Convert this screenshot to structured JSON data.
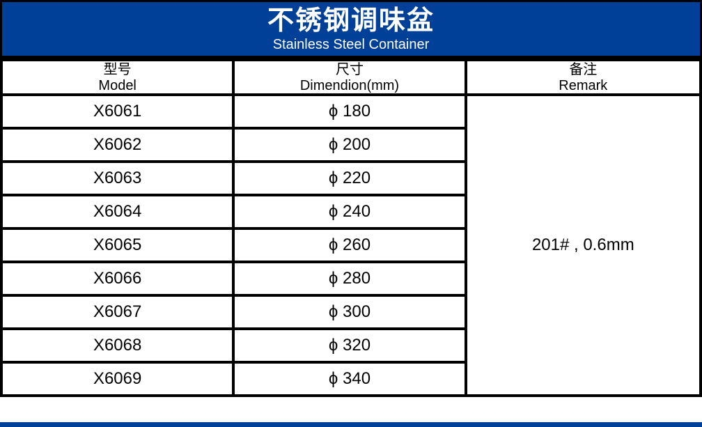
{
  "banner": {
    "title_zh": "不锈钢调味盆",
    "title_en": "Stainless Steel Container"
  },
  "table": {
    "headers": [
      {
        "zh": "型号",
        "en": "Model"
      },
      {
        "zh": "尺寸",
        "en": "Dimendion(mm)"
      },
      {
        "zh": "备注",
        "en": "Remark"
      }
    ],
    "rows": [
      {
        "model": "X6061",
        "dimension": "ϕ 180"
      },
      {
        "model": "X6062",
        "dimension": "ϕ 200"
      },
      {
        "model": "X6063",
        "dimension": "ϕ 220"
      },
      {
        "model": "X6064",
        "dimension": "ϕ 240"
      },
      {
        "model": "X6065",
        "dimension": "ϕ 260"
      },
      {
        "model": "X6066",
        "dimension": "ϕ 280"
      },
      {
        "model": "X6067",
        "dimension": "ϕ 300"
      },
      {
        "model": "X6068",
        "dimension": "ϕ 320"
      },
      {
        "model": "X6069",
        "dimension": "ϕ 340"
      }
    ],
    "remark": "201# , 0.6mm"
  },
  "colors": {
    "banner_blue": "#004098",
    "border_black": "#000000",
    "background_white": "#FFFFFF"
  }
}
